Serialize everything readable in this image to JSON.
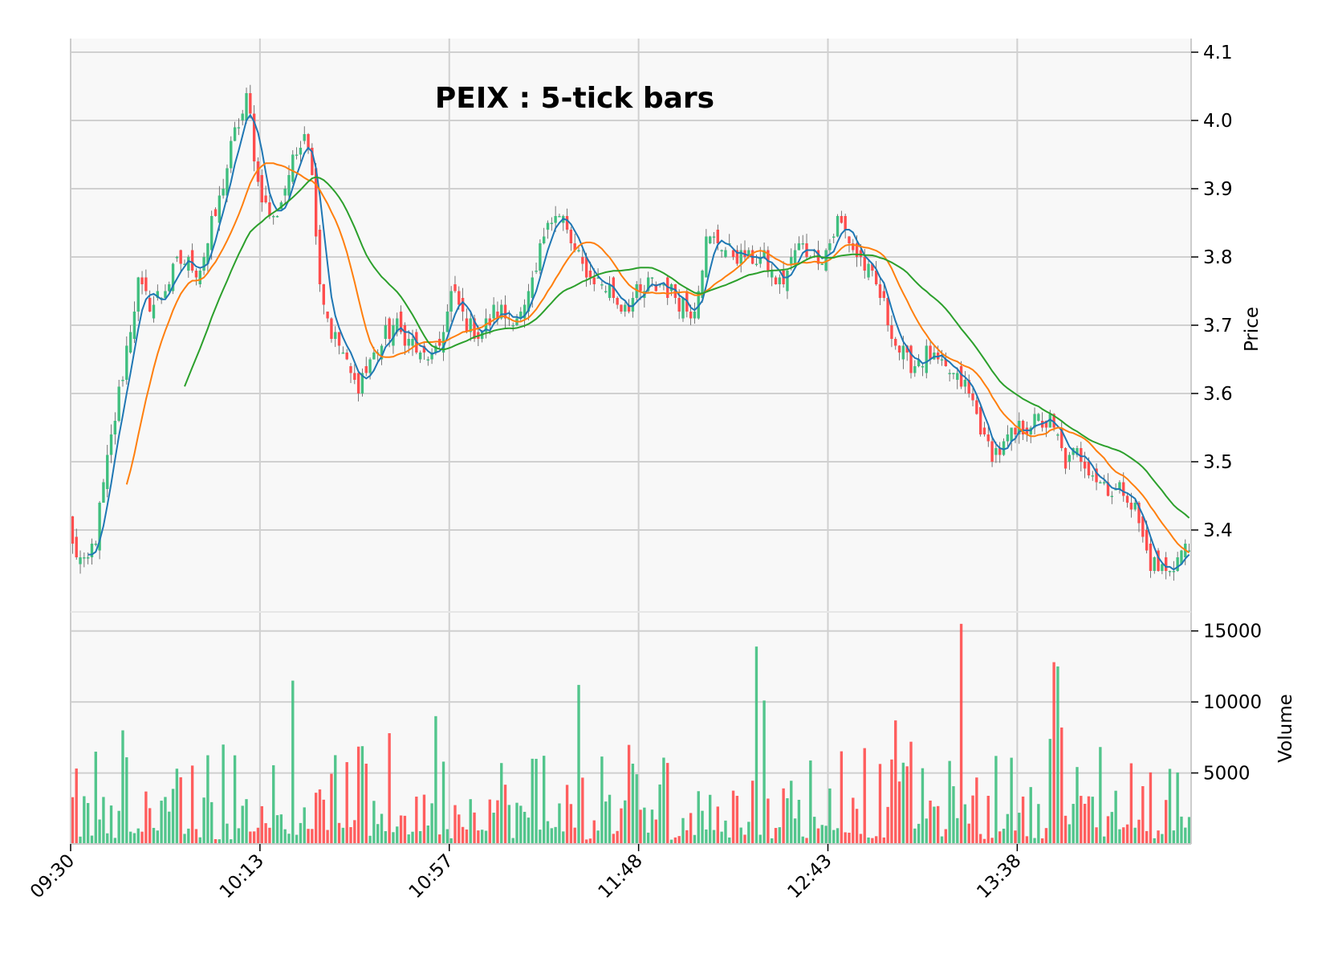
{
  "chart_data": {
    "type": "candlestick",
    "title": "PEIX : 5-tick bars",
    "price_axis": {
      "label": "Price",
      "ylim": [
        3.28,
        4.12
      ],
      "ticks": [
        "3.4",
        "3.5",
        "3.6",
        "3.7",
        "3.8",
        "3.9",
        "4.0",
        "4.1"
      ]
    },
    "volume_axis": {
      "label": "Volume",
      "ylim": [
        0,
        16000
      ],
      "ticks": [
        "5000",
        "10000",
        "15000"
      ]
    },
    "x_ticks": [
      "09:30",
      "10:13",
      "10:57",
      "11:48",
      "12:43",
      "13:38"
    ],
    "n_bars": 290,
    "grid": true,
    "y_axis_side": "right",
    "colors": {
      "up": "#3fbf7f",
      "down": "#ff4d4d",
      "ma_fast": "#1f77b4",
      "ma_mid": "#ff7f0e",
      "ma_slow": "#2ca02c",
      "panel_bg": "#f8f8f8",
      "grid": "#d0d0d0"
    },
    "series": [
      {
        "type": "mav",
        "window": 5
      },
      {
        "type": "mav",
        "window": 15
      },
      {
        "type": "mav",
        "window": 30
      }
    ],
    "price_path": [
      [
        0,
        3.38
      ],
      [
        3,
        3.34
      ],
      [
        6,
        3.38
      ],
      [
        10,
        3.52
      ],
      [
        14,
        3.64
      ],
      [
        18,
        3.76
      ],
      [
        22,
        3.73
      ],
      [
        26,
        3.76
      ],
      [
        30,
        3.8
      ],
      [
        34,
        3.78
      ],
      [
        36,
        3.8
      ],
      [
        40,
        3.88
      ],
      [
        44,
        3.97
      ],
      [
        48,
        4.03
      ],
      [
        51,
        3.9
      ],
      [
        55,
        3.85
      ],
      [
        58,
        3.9
      ],
      [
        61,
        3.95
      ],
      [
        64,
        4.0
      ],
      [
        66,
        3.9
      ],
      [
        68,
        3.75
      ],
      [
        71,
        3.69
      ],
      [
        74,
        3.66
      ],
      [
        77,
        3.61
      ],
      [
        80,
        3.63
      ],
      [
        84,
        3.67
      ],
      [
        88,
        3.7
      ],
      [
        92,
        3.68
      ],
      [
        96,
        3.65
      ],
      [
        100,
        3.66
      ],
      [
        104,
        3.75
      ],
      [
        108,
        3.7
      ],
      [
        112,
        3.69
      ],
      [
        116,
        3.72
      ],
      [
        120,
        3.71
      ],
      [
        124,
        3.72
      ],
      [
        127,
        3.78
      ],
      [
        130,
        3.86
      ],
      [
        134,
        3.86
      ],
      [
        138,
        3.8
      ],
      [
        142,
        3.77
      ],
      [
        146,
        3.76
      ],
      [
        150,
        3.73
      ],
      [
        154,
        3.74
      ],
      [
        158,
        3.76
      ],
      [
        162,
        3.76
      ],
      [
        166,
        3.74
      ],
      [
        170,
        3.72
      ],
      [
        174,
        3.83
      ],
      [
        178,
        3.82
      ],
      [
        182,
        3.8
      ],
      [
        186,
        3.8
      ],
      [
        190,
        3.79
      ],
      [
        194,
        3.76
      ],
      [
        198,
        3.81
      ],
      [
        202,
        3.81
      ],
      [
        206,
        3.8
      ],
      [
        210,
        3.86
      ],
      [
        214,
        3.81
      ],
      [
        218,
        3.78
      ],
      [
        222,
        3.73
      ],
      [
        226,
        3.67
      ],
      [
        230,
        3.64
      ],
      [
        234,
        3.66
      ],
      [
        238,
        3.64
      ],
      [
        242,
        3.62
      ],
      [
        246,
        3.6
      ],
      [
        250,
        3.53
      ],
      [
        253,
        3.51
      ],
      [
        256,
        3.53
      ],
      [
        260,
        3.55
      ],
      [
        264,
        3.56
      ],
      [
        268,
        3.56
      ],
      [
        272,
        3.5
      ],
      [
        276,
        3.51
      ],
      [
        280,
        3.48
      ],
      [
        284,
        3.46
      ],
      [
        288,
        3.46
      ],
      [
        292,
        3.42
      ],
      [
        294,
        3.37
      ],
      [
        296,
        3.35
      ],
      [
        300,
        3.34
      ],
      [
        304,
        3.37
      ],
      [
        306,
        3.37
      ]
    ],
    "volume_spikes": [
      [
        6,
        6500
      ],
      [
        14,
        8000
      ],
      [
        41,
        7000
      ],
      [
        60,
        11500
      ],
      [
        87,
        7800
      ],
      [
        100,
        9000
      ],
      [
        139,
        11200
      ],
      [
        187,
        13900
      ],
      [
        190,
        10100
      ],
      [
        244,
        15500
      ],
      [
        269,
        12800
      ],
      [
        270,
        12500
      ],
      [
        271,
        8200
      ],
      [
        268,
        7400
      ],
      [
        230,
        7200
      ],
      [
        226,
        8700
      ]
    ]
  }
}
